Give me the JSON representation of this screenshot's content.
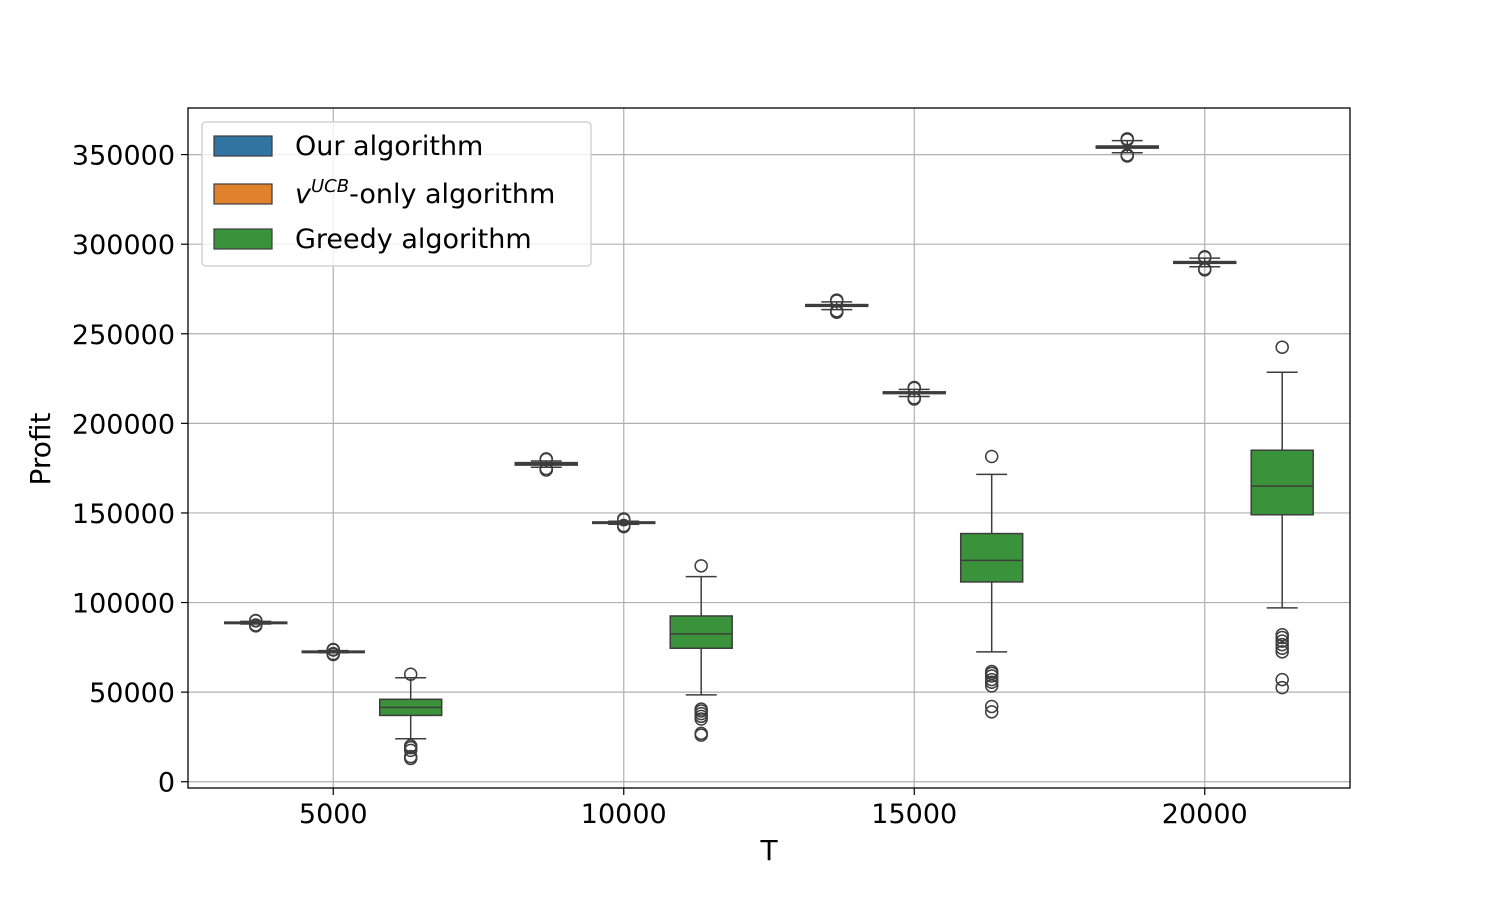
{
  "chart_data": {
    "type": "box",
    "xlabel": "T",
    "ylabel": "Profit",
    "x_ticks": [
      5000,
      10000,
      15000,
      20000
    ],
    "x_tick_labels": [
      "5000",
      "10000",
      "15000",
      "20000"
    ],
    "y_ticks": [
      0,
      50000,
      100000,
      150000,
      200000,
      250000,
      300000,
      350000
    ],
    "y_tick_labels": [
      "0",
      "50000",
      "100000",
      "150000",
      "200000",
      "250000",
      "300000",
      "350000"
    ],
    "xlim": [
      2500,
      22500
    ],
    "ylim": [
      -3500,
      376000
    ],
    "grid": true,
    "legend_placement": "top-left",
    "legend": [
      {
        "series": "our",
        "label_main": "Our algorithm",
        "label_base": "",
        "label_sup": "",
        "label_rest": ""
      },
      {
        "series": "ucb",
        "label_main": "",
        "label_base": "v",
        "label_sup": "UCB",
        "label_rest": "-only algorithm"
      },
      {
        "series": "greedy",
        "label_main": "Greedy algorithm",
        "label_base": "",
        "label_sup": "",
        "label_rest": ""
      }
    ],
    "colors": {
      "our": "#3274a1",
      "ucb": "#e1812c",
      "greedy": "#3a923a",
      "edge": "#3d3d3d"
    },
    "x_positions_note": "categories T = 5000, 10000, 15000, 20000 with three boxes each (hue offsets)",
    "series": [
      {
        "key": "our",
        "name": "Our algorithm",
        "boxes": [
          {
            "T": 5000,
            "x": 3666,
            "q1": 88300,
            "median": 88700,
            "q3": 89100,
            "whisker_low": 88000,
            "whisker_high": 89500,
            "outliers": [
              87000,
              87500,
              89800,
              90000
            ]
          },
          {
            "T": 10000,
            "x": 8666,
            "q1": 176700,
            "median": 177400,
            "q3": 178100,
            "whisker_low": 175500,
            "whisker_high": 179000,
            "outliers": [
              174000,
              174800,
              179800,
              180200
            ]
          },
          {
            "T": 15000,
            "x": 13666,
            "q1": 265300,
            "median": 265800,
            "q3": 266300,
            "whisker_low": 263500,
            "whisker_high": 267800,
            "outliers": [
              262000,
              262800,
              268300,
              268800
            ]
          },
          {
            "T": 20000,
            "x": 18666,
            "q1": 353600,
            "median": 354200,
            "q3": 354800,
            "whisker_low": 351000,
            "whisker_high": 357800,
            "outliers": [
              349200,
              349800,
              358200,
              358800
            ]
          }
        ]
      },
      {
        "key": "ucb",
        "name": "v^UCB-only algorithm",
        "boxes": [
          {
            "T": 5000,
            "x": 5000,
            "q1": 72300,
            "median": 72600,
            "q3": 72900,
            "whisker_low": 72000,
            "whisker_high": 73200,
            "outliers": [
              71000,
              71500,
              73500,
              73800
            ]
          },
          {
            "T": 10000,
            "x": 10000,
            "q1": 144200,
            "median": 144600,
            "q3": 145000,
            "whisker_low": 143700,
            "whisker_high": 145400,
            "outliers": [
              142400,
              143000,
              146200,
              146600
            ]
          },
          {
            "T": 15000,
            "x": 15000,
            "q1": 216600,
            "median": 217100,
            "q3": 217600,
            "whisker_low": 215000,
            "whisker_high": 219000,
            "outliers": [
              213600,
              214200,
              219600,
              220000
            ]
          },
          {
            "T": 20000,
            "x": 20000,
            "q1": 289300,
            "median": 289800,
            "q3": 290300,
            "whisker_low": 287400,
            "whisker_high": 292200,
            "outliers": [
              285700,
              286300,
              292600,
              293000
            ]
          }
        ]
      },
      {
        "key": "greedy",
        "name": "Greedy algorithm",
        "boxes": [
          {
            "T": 5000,
            "x": 6333,
            "q1": 37000,
            "median": 41500,
            "q3": 46000,
            "whisker_low": 24000,
            "whisker_high": 58000,
            "outliers": [
              13000,
              14000,
              17500,
              19000,
              20000,
              60000
            ]
          },
          {
            "T": 10000,
            "x": 11333,
            "q1": 74500,
            "median": 82500,
            "q3": 92500,
            "whisker_low": 48500,
            "whisker_high": 114500,
            "outliers": [
              26000,
              27000,
              35000,
              36500,
              38000,
              39500,
              40500,
              120500
            ]
          },
          {
            "T": 15000,
            "x": 16333,
            "q1": 111500,
            "median": 123500,
            "q3": 138500,
            "whisker_low": 72500,
            "whisker_high": 171500,
            "outliers": [
              39000,
              42000,
              53500,
              55500,
              57000,
              59000,
              60500,
              61500,
              181500
            ]
          },
          {
            "T": 20000,
            "x": 21333,
            "q1": 149000,
            "median": 165000,
            "q3": 185000,
            "whisker_low": 97000,
            "whisker_high": 228500,
            "outliers": [
              52500,
              57000,
              72500,
              74500,
              76500,
              78500,
              80500,
              82000,
              242500
            ]
          }
        ]
      }
    ]
  }
}
